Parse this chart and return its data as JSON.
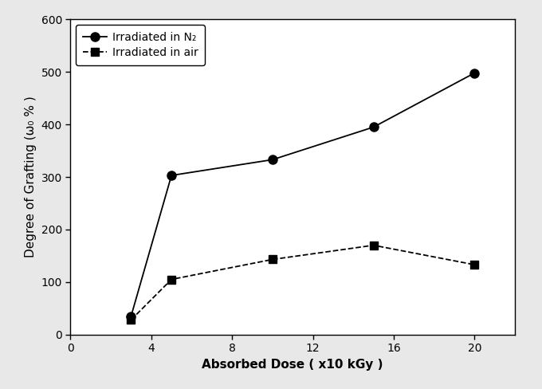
{
  "n2_x": [
    3,
    5,
    10,
    15,
    20
  ],
  "n2_y": [
    35,
    303,
    333,
    395,
    498
  ],
  "air_x": [
    3,
    5,
    10,
    15,
    20
  ],
  "air_y": [
    28,
    105,
    143,
    170,
    133
  ],
  "title": "",
  "xlabel": "Absorbed Dose ( x10 kGy )",
  "ylabel": "Degree of Grafting (ω₀ % )",
  "xlim": [
    0,
    22
  ],
  "ylim": [
    0,
    600
  ],
  "xticks": [
    0,
    4,
    8,
    12,
    16,
    20
  ],
  "yticks": [
    0,
    100,
    200,
    300,
    400,
    500,
    600
  ],
  "legend_n2": "Irradiated in N₂",
  "legend_air": "Irradiated in air",
  "n2_color": "#000000",
  "air_color": "#000000",
  "bg_color": "#e8e8e8",
  "plot_bg_color": "#ffffff",
  "linewidth": 1.3,
  "markersize": 8,
  "xlabel_fontsize": 11,
  "ylabel_fontsize": 11,
  "tick_fontsize": 10,
  "legend_fontsize": 10
}
